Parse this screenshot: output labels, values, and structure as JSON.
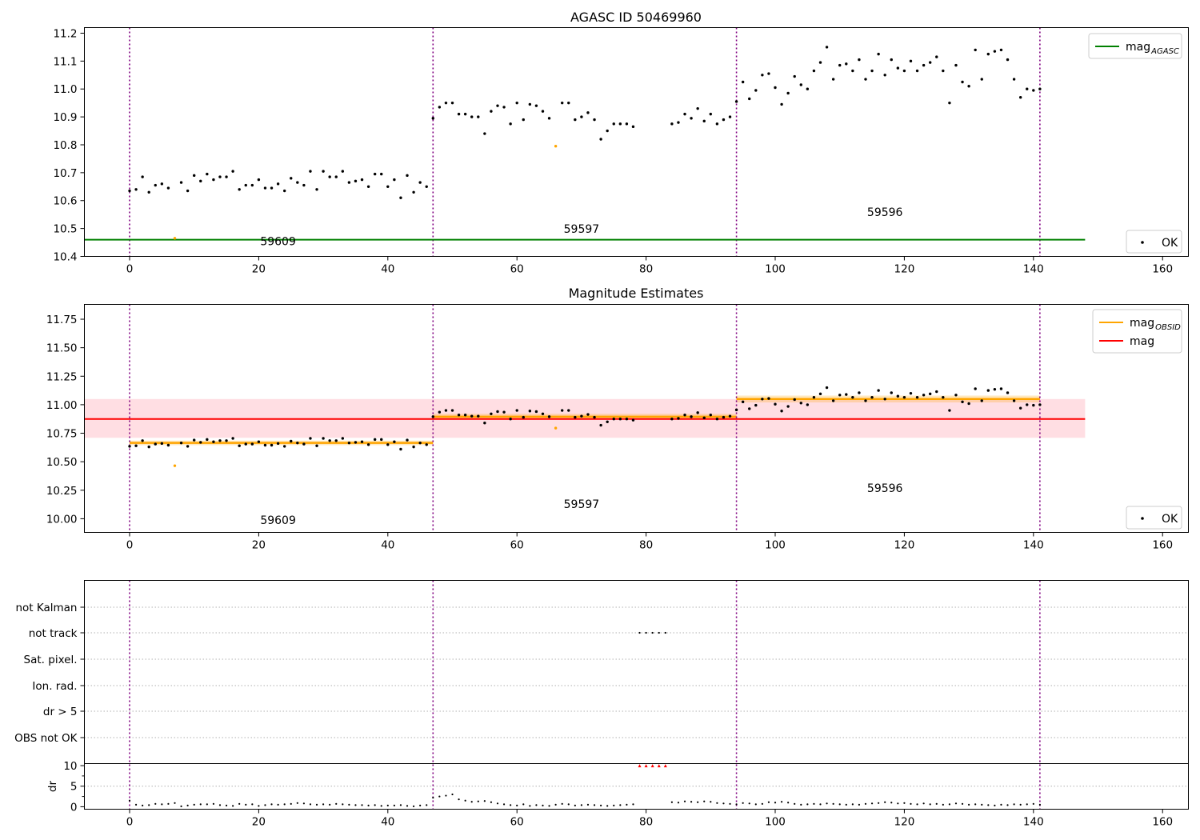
{
  "figure": {
    "colors": {
      "ok": "#000000",
      "suspect": "#ffa500",
      "agasc": "#008000",
      "obsid": "#ffa500",
      "mag": "#ff0000",
      "band": "#ffb6c1",
      "vline": "#800080",
      "flag": "#ff0000"
    }
  },
  "chart_data": [
    {
      "type": "scatter",
      "title": "AGASC ID 50469960",
      "xlim": [
        -7,
        164
      ],
      "ylim": [
        10.4,
        11.22
      ],
      "xticks": [
        0,
        20,
        40,
        60,
        80,
        100,
        120,
        140,
        160
      ],
      "yticks": [
        10.4,
        10.5,
        10.6,
        10.7,
        10.8,
        10.9,
        11.0,
        11.1,
        11.2
      ],
      "ytick_labels": [
        "10.4",
        "10.5",
        "10.6",
        "10.7",
        "10.8",
        "10.9",
        "11.0",
        "11.1",
        "11.2"
      ],
      "vlines": [
        0,
        47,
        94,
        141
      ],
      "hline": {
        "y": 10.46,
        "x_range": [
          -7,
          148
        ],
        "label": "mag",
        "label_sub": "AGASC"
      },
      "obsid_labels": [
        {
          "text": "59609",
          "x": 23,
          "y": 10.44
        },
        {
          "text": "59597",
          "x": 70,
          "y": 10.485
        },
        {
          "text": "59596",
          "x": 117,
          "y": 10.545
        }
      ],
      "legend_lines": [
        {
          "name": "mag",
          "sub": "AGASC",
          "color": "#008000"
        }
      ],
      "legend_points": [
        {
          "name": "OK",
          "color": "#000000"
        }
      ],
      "series": [
        {
          "name": "OK",
          "x": [
            0,
            1,
            2,
            3,
            4,
            5,
            6,
            8,
            9,
            10,
            11,
            12,
            13,
            14,
            15,
            16,
            17,
            18,
            19,
            20,
            21,
            22,
            23,
            24,
            25,
            26,
            27,
            28,
            29,
            30,
            31,
            32,
            33,
            34,
            35,
            36,
            37,
            38,
            39,
            40,
            41,
            42,
            43,
            44,
            45,
            46,
            47,
            48,
            49,
            50,
            51,
            52,
            53,
            54,
            55,
            56,
            57,
            58,
            59,
            60,
            61,
            62,
            63,
            64,
            65,
            67,
            68,
            69,
            70,
            71,
            72,
            73,
            74,
            75,
            76,
            77,
            78,
            84,
            85,
            86,
            87,
            88,
            89,
            90,
            91,
            92,
            93,
            94,
            95,
            96,
            97,
            98,
            99,
            100,
            101,
            102,
            103,
            104,
            105,
            106,
            107,
            108,
            109,
            110,
            111,
            112,
            113,
            114,
            115,
            116,
            117,
            118,
            119,
            120,
            121,
            122,
            123,
            124,
            125,
            126,
            127,
            128,
            129,
            130,
            131,
            132,
            133,
            134,
            135,
            136,
            137,
            138,
            139,
            140,
            141
          ],
          "y": [
            10.635,
            10.64,
            10.685,
            10.63,
            10.655,
            10.66,
            10.645,
            10.665,
            10.635,
            10.69,
            10.67,
            10.695,
            10.675,
            10.685,
            10.685,
            10.705,
            10.64,
            10.655,
            10.655,
            10.675,
            10.645,
            10.645,
            10.66,
            10.635,
            10.68,
            10.665,
            10.655,
            10.705,
            10.64,
            10.705,
            10.685,
            10.685,
            10.705,
            10.665,
            10.67,
            10.675,
            10.65,
            10.695,
            10.695,
            10.65,
            10.675,
            10.61,
            10.69,
            10.63,
            10.665,
            10.65,
            10.895,
            10.935,
            10.95,
            10.95,
            10.91,
            10.91,
            10.9,
            10.9,
            10.84,
            10.92,
            10.94,
            10.935,
            10.875,
            10.95,
            10.89,
            10.945,
            10.94,
            10.92,
            10.895,
            10.95,
            10.95,
            10.89,
            10.9,
            10.915,
            10.89,
            10.82,
            10.85,
            10.875,
            10.875,
            10.875,
            10.865,
            10.875,
            10.88,
            10.91,
            10.895,
            10.93,
            10.885,
            10.91,
            10.875,
            10.89,
            10.9,
            10.955,
            11.025,
            10.965,
            10.995,
            11.05,
            11.055,
            11.005,
            10.945,
            10.985,
            11.045,
            11.015,
            11.0,
            11.065,
            11.095,
            11.15,
            11.035,
            11.085,
            11.09,
            11.065,
            11.105,
            11.035,
            11.065,
            11.125,
            11.05,
            11.105,
            11.075,
            11.065,
            11.1,
            11.065,
            11.085,
            11.095,
            11.115,
            11.065,
            10.95,
            11.085,
            11.025,
            11.01,
            11.14,
            11.035,
            11.125,
            11.135,
            11.14,
            11.105,
            11.035,
            10.97,
            11.0,
            10.995,
            11.0
          ]
        },
        {
          "name": "suspect",
          "x": [
            7,
            66
          ],
          "y": [
            10.465,
            10.795
          ]
        }
      ]
    },
    {
      "type": "scatter",
      "title": "Magnitude Estimates",
      "xlim": [
        -7,
        164
      ],
      "ylim": [
        9.88,
        11.88
      ],
      "xticks": [
        0,
        20,
        40,
        60,
        80,
        100,
        120,
        140,
        160
      ],
      "yticks": [
        10.0,
        10.25,
        10.5,
        10.75,
        11.0,
        11.25,
        11.5,
        11.75
      ],
      "ytick_labels": [
        "10.00",
        "10.25",
        "10.50",
        "10.75",
        "11.00",
        "11.25",
        "11.50",
        "11.75"
      ],
      "vlines": [
        0,
        47,
        94,
        141
      ],
      "mag": {
        "y": 10.875,
        "band": [
          10.71,
          11.05
        ],
        "x_range": [
          -7,
          148
        ]
      },
      "obsid_segments": [
        {
          "x_range": [
            0,
            47
          ],
          "y": 10.665,
          "band": [
            10.645,
            10.685
          ]
        },
        {
          "x_range": [
            47,
            94
          ],
          "y": 10.895,
          "band": [
            10.87,
            10.92
          ]
        },
        {
          "x_range": [
            94,
            141
          ],
          "y": 11.05,
          "band": [
            11.02,
            11.08
          ]
        }
      ],
      "obsid_labels": [
        {
          "text": "59609",
          "x": 23,
          "y": 9.955
        },
        {
          "text": "59597",
          "x": 70,
          "y": 10.095
        },
        {
          "text": "59596",
          "x": 117,
          "y": 10.235
        }
      ],
      "legend_lines": [
        {
          "name": "mag",
          "sub": "OBSID",
          "color": "#ffa500"
        },
        {
          "name": "mag",
          "sub": "",
          "color": "#ff0000"
        }
      ],
      "legend_points": [
        {
          "name": "OK",
          "color": "#000000"
        }
      ],
      "series_ref": "same data as panel 1"
    },
    {
      "type": "scatter",
      "title": "",
      "xlim": [
        -7,
        164
      ],
      "xticks": [
        0,
        20,
        40,
        60,
        80,
        100,
        120,
        140,
        160
      ],
      "vlines": [
        0,
        47,
        94,
        141
      ],
      "flag_categories": [
        "not Kalman",
        "not track",
        "Sat. pixel.",
        "Ion. rad.",
        "dr > 5",
        "OBS not OK"
      ],
      "flags": [
        {
          "category": "not track",
          "x": [
            79,
            80,
            81,
            82,
            83
          ]
        }
      ],
      "dr": {
        "ylabel": "dr",
        "yticks": [
          0,
          5,
          10
        ],
        "ylim": [
          -0.6,
          10.5
        ],
        "outliers": {
          "x": [
            79,
            80,
            81,
            82,
            83
          ],
          "y": [
            10,
            10,
            10,
            10,
            10
          ]
        },
        "x": [
          0,
          1,
          2,
          3,
          4,
          5,
          6,
          7,
          8,
          9,
          10,
          11,
          12,
          13,
          14,
          15,
          16,
          17,
          18,
          19,
          20,
          21,
          22,
          23,
          24,
          25,
          26,
          27,
          28,
          29,
          30,
          31,
          32,
          33,
          34,
          35,
          36,
          37,
          38,
          39,
          40,
          41,
          42,
          43,
          44,
          45,
          46,
          47,
          48,
          49,
          50,
          51,
          52,
          53,
          54,
          55,
          56,
          57,
          58,
          59,
          60,
          61,
          62,
          63,
          64,
          65,
          66,
          67,
          68,
          69,
          70,
          71,
          72,
          73,
          74,
          75,
          76,
          77,
          78,
          84,
          85,
          86,
          87,
          88,
          89,
          90,
          91,
          92,
          93,
          94,
          95,
          96,
          97,
          98,
          99,
          100,
          101,
          102,
          103,
          104,
          105,
          106,
          107,
          108,
          109,
          110,
          111,
          112,
          113,
          114,
          115,
          116,
          117,
          118,
          119,
          120,
          121,
          122,
          123,
          124,
          125,
          126,
          127,
          128,
          129,
          130,
          131,
          132,
          133,
          134,
          135,
          136,
          137,
          138,
          139,
          140,
          141
        ],
        "y": [
          1.5,
          0.5,
          0.3,
          0.4,
          0.7,
          0.6,
          0.7,
          0.9,
          0.1,
          0.3,
          0.5,
          0.6,
          0.6,
          0.7,
          0.4,
          0.3,
          0.2,
          0.7,
          0.5,
          0.6,
          0.2,
          0.4,
          0.6,
          0.5,
          0.6,
          0.7,
          0.9,
          0.8,
          0.6,
          0.5,
          0.6,
          0.5,
          0.7,
          0.6,
          0.5,
          0.4,
          0.4,
          0.3,
          0.4,
          0.2,
          0.3,
          0.3,
          0.4,
          0.2,
          0.1,
          0.3,
          0.4,
          2.2,
          2.5,
          2.7,
          3.0,
          1.8,
          1.5,
          1.2,
          1.3,
          1.4,
          1.1,
          0.8,
          0.6,
          0.4,
          0.3,
          0.6,
          0.2,
          0.4,
          0.3,
          0.2,
          0.5,
          0.7,
          0.6,
          0.3,
          0.4,
          0.5,
          0.4,
          0.3,
          0.2,
          0.3,
          0.4,
          0.5,
          0.6,
          1.1,
          1.0,
          1.3,
          1.2,
          1.1,
          1.3,
          1.2,
          0.9,
          0.8,
          0.7,
          0.6,
          0.9,
          0.8,
          0.6,
          0.7,
          1.1,
          1.0,
          1.2,
          1.0,
          0.7,
          0.5,
          0.6,
          0.7,
          0.6,
          0.8,
          0.7,
          0.6,
          0.5,
          0.6,
          0.5,
          0.7,
          0.8,
          0.9,
          1.1,
          1.0,
          0.8,
          0.9,
          0.7,
          0.6,
          0.8,
          0.6,
          0.7,
          0.5,
          0.6,
          0.8,
          0.7,
          0.5,
          0.6,
          0.5,
          0.4,
          0.3,
          0.5,
          0.4,
          0.6,
          0.5,
          0.6,
          0.7,
          0.5
        ]
      }
    }
  ]
}
